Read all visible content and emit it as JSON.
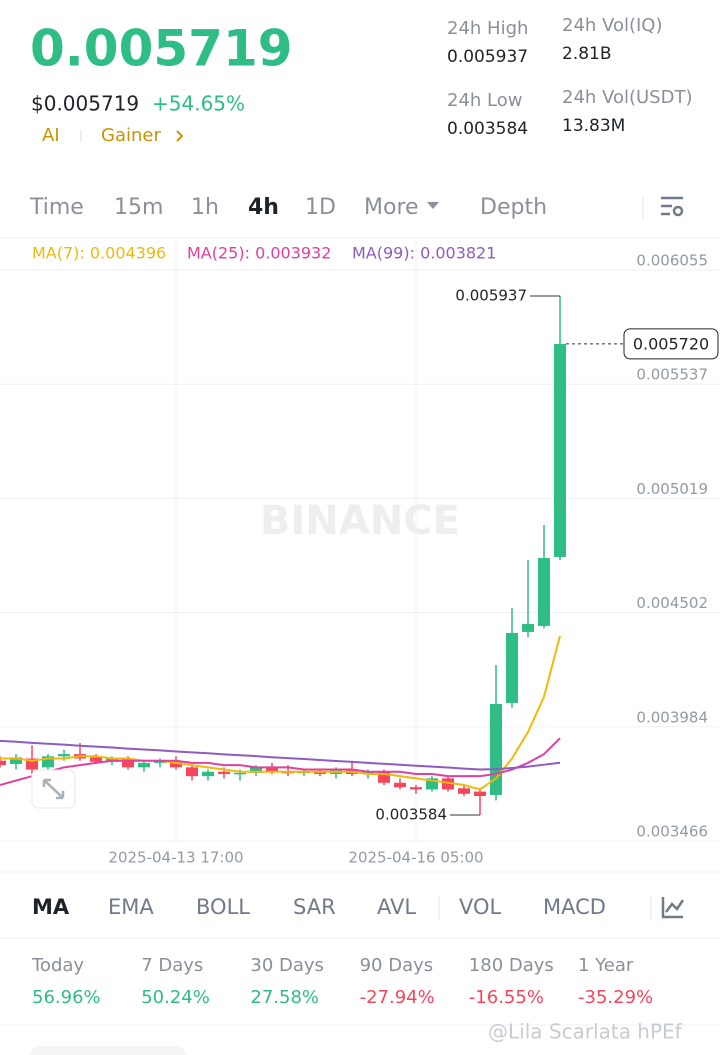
{
  "header": {
    "price": "0.005719",
    "usd_price": "$0.005719",
    "change": "+54.65%",
    "tags": [
      "AI",
      "Gainer"
    ]
  },
  "stats": [
    {
      "label": "24h High",
      "value": "0.005937"
    },
    {
      "label": "24h Vol(IQ)",
      "value": "2.81B"
    },
    {
      "label": "24h Low",
      "value": "0.003584"
    },
    {
      "label": "24h Vol(USDT)",
      "value": "13.83M"
    }
  ],
  "tabs": [
    "Time",
    "15m",
    "1h",
    "4h",
    "1D",
    "More",
    "Depth"
  ],
  "watermark": "BINANCE",
  "chart_data": {
    "type": "candlestick",
    "categories": [
      null,
      null,
      null,
      null,
      null,
      null,
      null,
      null,
      null,
      null,
      null,
      "2025-04-13 17:00",
      null,
      null,
      null,
      null,
      null,
      null,
      null,
      null,
      null,
      null,
      null,
      null,
      null,
      null,
      "2025-04-16 05:00",
      null,
      null,
      null,
      null,
      null,
      null,
      null,
      null,
      null
    ],
    "open": [
      0.00383,
      0.003815,
      0.00384,
      0.0038,
      0.00385,
      0.00386,
      0.003845,
      0.003825,
      0.00384,
      0.0038,
      0.00382,
      0.00383,
      0.0038,
      0.00376,
      0.00378,
      0.00377,
      0.003775,
      0.0038,
      0.00378,
      0.003775,
      0.00378,
      0.00377,
      0.00379,
      0.00377,
      0.00378,
      0.00373,
      0.00371,
      0.0037,
      0.00375,
      0.003705,
      0.00369,
      0.003675,
      0.004092,
      0.004414,
      0.004441,
      0.004754
    ],
    "high": [
      0.00385,
      0.00386,
      0.0039,
      0.00386,
      0.00388,
      0.00391,
      0.00386,
      0.00385,
      0.00385,
      0.00383,
      0.00384,
      0.00385,
      0.00381,
      0.00379,
      0.0038,
      0.00379,
      0.00381,
      0.00382,
      0.00381,
      0.00379,
      0.003795,
      0.0038,
      0.00383,
      0.00379,
      0.00379,
      0.00375,
      0.00372,
      0.00376,
      0.00376,
      0.00372,
      0.0037,
      0.004264,
      0.004523,
      0.00474,
      0.004899,
      0.005937
    ],
    "low": [
      0.0038,
      0.00379,
      0.00377,
      0.00379,
      0.00383,
      0.00383,
      0.00382,
      0.00381,
      0.00379,
      0.00378,
      0.0038,
      0.00379,
      0.00374,
      0.00374,
      0.00375,
      0.00374,
      0.00376,
      0.00377,
      0.00376,
      0.00376,
      0.00376,
      0.00375,
      0.00376,
      0.00375,
      0.00372,
      0.0037,
      0.00368,
      0.00369,
      0.00369,
      0.00367,
      0.003584,
      0.00365,
      0.00407,
      0.00439,
      0.00443,
      0.00474
    ],
    "close": [
      0.00381,
      0.003845,
      0.00379,
      0.00385,
      0.00386,
      0.00384,
      0.003825,
      0.00384,
      0.0038,
      0.00382,
      0.00383,
      0.0038,
      0.00376,
      0.00378,
      0.00377,
      0.003775,
      0.0038,
      0.00378,
      0.003775,
      0.00378,
      0.00377,
      0.00379,
      0.00377,
      0.00378,
      0.00373,
      0.00371,
      0.0037,
      0.00375,
      0.0037,
      0.00368,
      0.00367,
      0.004087,
      0.004409,
      0.00445,
      0.004749,
      0.00572
    ],
    "up_color": "#2ebd85",
    "down_color": "#f6465d",
    "series": [
      {
        "name": "MA(7): 0.004396",
        "color": "#f0b90b",
        "values": [
          0.00384,
          0.00384,
          0.00383,
          0.00384,
          0.00384,
          0.00385,
          0.00385,
          0.00384,
          0.00384,
          0.00383,
          0.00383,
          0.00382,
          0.00381,
          0.0038,
          0.00379,
          0.00378,
          0.00378,
          0.00378,
          0.00378,
          0.00378,
          0.00378,
          0.00378,
          0.00378,
          0.00377,
          0.00377,
          0.00376,
          0.00375,
          0.00374,
          0.00373,
          0.00372,
          0.0037,
          0.00375,
          0.00384,
          0.00396,
          0.00412,
          0.004396
        ]
      },
      {
        "name": "MA(25): 0.003932",
        "color": "#e040a0",
        "values": [
          0.00372,
          0.00374,
          0.00376,
          0.00378,
          0.0038,
          0.00381,
          0.00382,
          0.00383,
          0.00383,
          0.00383,
          0.00383,
          0.00383,
          0.00382,
          0.00382,
          0.00381,
          0.00381,
          0.0038,
          0.0038,
          0.0038,
          0.00379,
          0.00379,
          0.00379,
          0.00379,
          0.00378,
          0.00378,
          0.00378,
          0.00377,
          0.00377,
          0.00376,
          0.00376,
          0.00376,
          0.00377,
          0.00379,
          0.00382,
          0.00386,
          0.003932
        ]
      },
      {
        "name": "MA(99): 0.003821",
        "color": "#8e5cc0",
        "values": [
          0.00392,
          0.003916,
          0.003911,
          0.003907,
          0.003903,
          0.003898,
          0.003894,
          0.00389,
          0.003885,
          0.003881,
          0.003877,
          0.003872,
          0.003868,
          0.003864,
          0.003859,
          0.003855,
          0.003851,
          0.003846,
          0.003842,
          0.003838,
          0.003833,
          0.003829,
          0.003825,
          0.00382,
          0.003816,
          0.003812,
          0.003807,
          0.003803,
          0.003799,
          0.003794,
          0.00379,
          0.003792,
          0.003797,
          0.003803,
          0.003812,
          0.003821
        ]
      }
    ],
    "last_label": "0.005720",
    "ylim": [
      0.003466,
      0.006055
    ],
    "yticks": [
      0.006055,
      0.005537,
      0.005019,
      0.004502,
      0.003984,
      0.003466
    ],
    "grid": true
  },
  "indicators": [
    "MA",
    "EMA",
    "BOLL",
    "SAR",
    "AVL",
    "VOL",
    "MACD"
  ],
  "performance": [
    {
      "label": "Today",
      "value": "56.96%"
    },
    {
      "label": "7 Days",
      "value": "50.24%"
    },
    {
      "label": "30 Days",
      "value": "27.58%"
    },
    {
      "label": "90 Days",
      "value": "-27.94%"
    },
    {
      "label": "180 Days",
      "value": "-16.55%"
    },
    {
      "label": "1 Year",
      "value": "-35.29%"
    }
  ],
  "credit": "@Lila Scarlata hPEf"
}
